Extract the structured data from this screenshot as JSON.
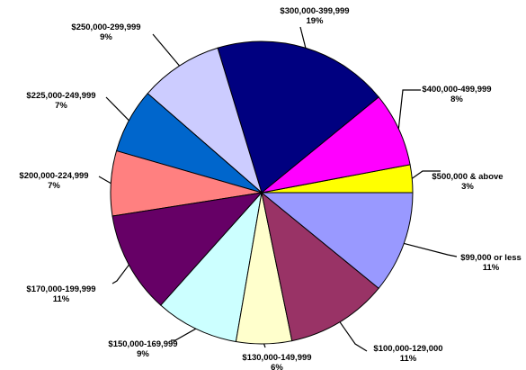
{
  "chart_data": {
    "type": "pie",
    "title": "",
    "start_angle_deg": 0,
    "direction": "counterclockwise-from-right",
    "slices": [
      {
        "label": "$500,000 & above",
        "value": 3,
        "pct": "3%",
        "color": "#FFFF00"
      },
      {
        "label": "$400,000-499,999",
        "value": 8,
        "pct": "8%",
        "color": "#FF00FF"
      },
      {
        "label": "$300,000-399,999",
        "value": 19,
        "pct": "19%",
        "color": "#000080"
      },
      {
        "label": "$250,000-299,999",
        "value": 9,
        "pct": "9%",
        "color": "#CCCCFF"
      },
      {
        "label": "$225,000-249,999",
        "value": 7,
        "pct": "7%",
        "color": "#0066CC"
      },
      {
        "label": "$200,000-224,999",
        "value": 7,
        "pct": "7%",
        "color": "#FF8080"
      },
      {
        "label": "$170,000-199,999",
        "value": 11,
        "pct": "11%",
        "color": "#660066"
      },
      {
        "label": "$150,000-169,999",
        "value": 9,
        "pct": "9%",
        "color": "#CCFFFF"
      },
      {
        "label": "$130,000-149,999",
        "value": 6,
        "pct": "6%",
        "color": "#FFFFCC"
      },
      {
        "label": "$100,000-129,000",
        "value": 11,
        "pct": "11%",
        "color": "#993366"
      },
      {
        "label": "$99,000 or less",
        "value": 11,
        "pct": "11%",
        "color": "#9999FF"
      }
    ]
  }
}
